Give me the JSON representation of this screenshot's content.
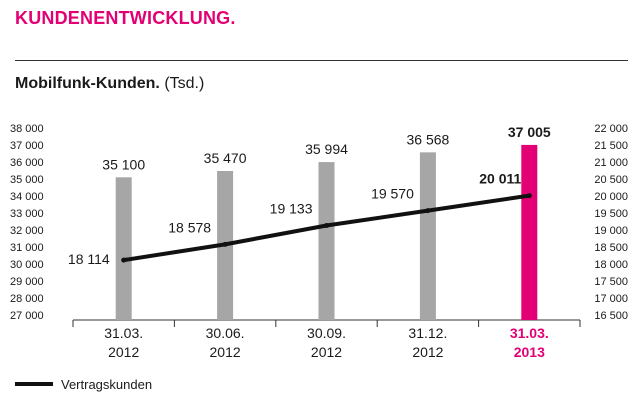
{
  "page": {
    "section_title": "KUNDENENTWICKLUNG.",
    "chart_title": "Mobilfunk-Kunden.",
    "chart_unit": "(Tsd.)"
  },
  "colors": {
    "accent": "#e20074",
    "bar": "#a6a6a6",
    "line": "#111111",
    "text": "#1a1a1a"
  },
  "chart_data": {
    "type": "bar",
    "categories": [
      [
        "31.03.",
        "2012"
      ],
      [
        "30.06.",
        "2012"
      ],
      [
        "30.09.",
        "2012"
      ],
      [
        "31.12.",
        "2012"
      ],
      [
        "31.03.",
        "2013"
      ]
    ],
    "highlight_index": 4,
    "series": [
      {
        "values": [
          35100,
          35470,
          35994,
          36568,
          37005
        ],
        "labels": [
          "35 100",
          "35 470",
          "35 994",
          "36 568",
          "37 005"
        ],
        "axis": "left"
      },
      {
        "name": "Vertragskunden",
        "type": "line",
        "values": [
          18114,
          18578,
          19133,
          19570,
          20011
        ],
        "labels": [
          "18 114",
          "18 578",
          "19 133",
          "19 570",
          "20 011"
        ],
        "axis": "right"
      }
    ],
    "left_axis": {
      "range": [
        27000,
        38000
      ],
      "ticks": [
        27000,
        28000,
        29000,
        30000,
        31000,
        32000,
        33000,
        34000,
        35000,
        36000,
        37000,
        38000
      ],
      "tick_labels": [
        "27 000",
        "28 000",
        "29 000",
        "30 000",
        "31 000",
        "32 000",
        "33 000",
        "34 000",
        "35 000",
        "36 000",
        "37 000",
        "38 000"
      ]
    },
    "right_axis": {
      "range": [
        16500,
        22000
      ],
      "ticks": [
        16500,
        17000,
        17500,
        18000,
        18500,
        19000,
        19500,
        20000,
        20500,
        21000,
        21500,
        22000
      ],
      "tick_labels": [
        "16 500",
        "17 000",
        "17 500",
        "18 000",
        "18 500",
        "19 000",
        "19 500",
        "20 000",
        "20 500",
        "21 000",
        "21 500",
        "22 000"
      ]
    },
    "grid": false,
    "legend": "bottom-left"
  }
}
